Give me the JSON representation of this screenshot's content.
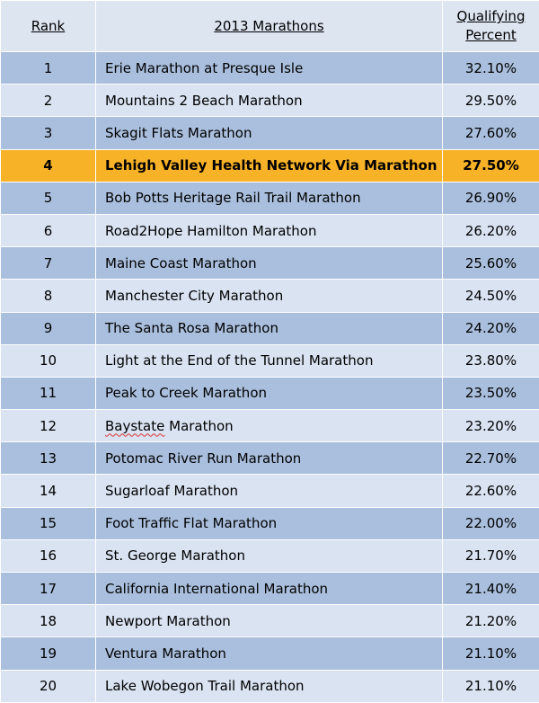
{
  "header": {
    "rank": "Rank",
    "name": "2013 Marathons",
    "pct_line1": "Qualifying",
    "pct_line2": "Percent"
  },
  "highlight_color": "#f8b227",
  "row_colors": {
    "dark": "#a9bfdd",
    "light": "#d9e3f1"
  },
  "rows": [
    {
      "rank": "1",
      "name": "Erie Marathon at Presque Isle",
      "pct": "32.10%"
    },
    {
      "rank": "2",
      "name": "Mountains 2 Beach Marathon",
      "pct": "29.50%"
    },
    {
      "rank": "3",
      "name": "Skagit Flats Marathon",
      "pct": "27.60%"
    },
    {
      "rank": "4",
      "name": "Lehigh Valley Health Network Via Marathon",
      "pct": "27.50%",
      "highlighted": true
    },
    {
      "rank": "5",
      "name": "Bob Potts Heritage Rail Trail Marathon",
      "pct": "26.90%"
    },
    {
      "rank": "6",
      "name": "Road2Hope Hamilton Marathon",
      "pct": "26.20%"
    },
    {
      "rank": "7",
      "name": "Maine Coast Marathon",
      "pct": "25.60%"
    },
    {
      "rank": "8",
      "name": "Manchester City Marathon",
      "pct": "24.50%"
    },
    {
      "rank": "9",
      "name": "The Santa Rosa Marathon",
      "pct": "24.20%"
    },
    {
      "rank": "10",
      "name": "Light at the End of the Tunnel Marathon",
      "pct": "23.80%"
    },
    {
      "rank": "11",
      "name": "Peak to Creek Marathon",
      "pct": "23.50%"
    },
    {
      "rank": "12",
      "name": "Baystate Marathon",
      "pct": "23.20%"
    },
    {
      "rank": "13",
      "name": "Potomac River Run Marathon",
      "pct": "22.70%"
    },
    {
      "rank": "14",
      "name": "Sugarloaf Marathon",
      "pct": "22.60%"
    },
    {
      "rank": "15",
      "name": "Foot Traffic Flat Marathon",
      "pct": "22.00%"
    },
    {
      "rank": "16",
      "name": "St. George Marathon",
      "pct": "21.70%"
    },
    {
      "rank": "17",
      "name": "California International Marathon",
      "pct": "21.40%"
    },
    {
      "rank": "18",
      "name": "Newport Marathon",
      "pct": "21.20%"
    },
    {
      "rank": "19",
      "name": "Ventura Marathon",
      "pct": "21.10%"
    },
    {
      "rank": "20",
      "name": "Lake Wobegon Trail Marathon",
      "pct": "21.10%"
    }
  ]
}
